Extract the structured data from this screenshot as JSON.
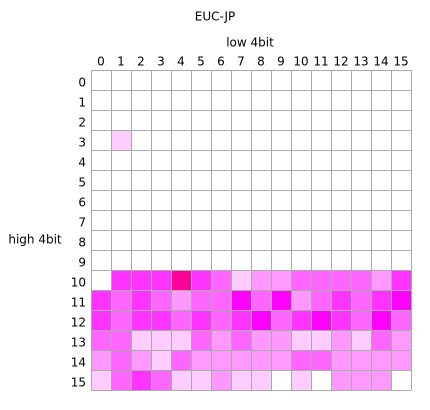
{
  "chart_data": {
    "type": "heatmap",
    "title": "EUC-JP",
    "x_label": "low 4bit",
    "y_label": "high 4bit",
    "xticks": [
      0,
      1,
      2,
      3,
      4,
      5,
      6,
      7,
      8,
      9,
      10,
      11,
      12,
      13,
      14,
      15
    ],
    "yticks": [
      0,
      1,
      2,
      3,
      4,
      5,
      6,
      7,
      8,
      9,
      10,
      11,
      12,
      13,
      14,
      15
    ],
    "colors": [
      "#ffffff",
      "#ffccff",
      "#ff99ff",
      "#ff66ff",
      "#ff33ff",
      "#ff00ff",
      "#ff0099"
    ],
    "grid": true,
    "values": [
      [
        0,
        0,
        0,
        0,
        0,
        0,
        0,
        0,
        0,
        0,
        0,
        0,
        0,
        0,
        0,
        0
      ],
      [
        0,
        0,
        0,
        0,
        0,
        0,
        0,
        0,
        0,
        0,
        0,
        0,
        0,
        0,
        0,
        0
      ],
      [
        0,
        0,
        0,
        0,
        0,
        0,
        0,
        0,
        0,
        0,
        0,
        0,
        0,
        0,
        0,
        0
      ],
      [
        0,
        1,
        0,
        0,
        0,
        0,
        0,
        0,
        0,
        0,
        0,
        0,
        0,
        0,
        0,
        0
      ],
      [
        0,
        0,
        0,
        0,
        0,
        0,
        0,
        0,
        0,
        0,
        0,
        0,
        0,
        0,
        0,
        0
      ],
      [
        0,
        0,
        0,
        0,
        0,
        0,
        0,
        0,
        0,
        0,
        0,
        0,
        0,
        0,
        0,
        0
      ],
      [
        0,
        0,
        0,
        0,
        0,
        0,
        0,
        0,
        0,
        0,
        0,
        0,
        0,
        0,
        0,
        0
      ],
      [
        0,
        0,
        0,
        0,
        0,
        0,
        0,
        0,
        0,
        0,
        0,
        0,
        0,
        0,
        0,
        0
      ],
      [
        0,
        0,
        0,
        0,
        0,
        0,
        0,
        0,
        0,
        0,
        0,
        0,
        0,
        0,
        0,
        0
      ],
      [
        0,
        0,
        0,
        0,
        0,
        0,
        0,
        0,
        0,
        0,
        0,
        0,
        0,
        0,
        0,
        0
      ],
      [
        0,
        4,
        4,
        4,
        6,
        4,
        3,
        1,
        2,
        2,
        3,
        3,
        3,
        3,
        2,
        4
      ],
      [
        4,
        3,
        4,
        3,
        2,
        3,
        3,
        5,
        3,
        5,
        2,
        3,
        4,
        3,
        4,
        5
      ],
      [
        4,
        3,
        4,
        4,
        3,
        4,
        3,
        4,
        5,
        3,
        4,
        5,
        4,
        3,
        5,
        3
      ],
      [
        3,
        3,
        1,
        1,
        1,
        3,
        2,
        3,
        2,
        2,
        1,
        1,
        2,
        1,
        3,
        2
      ],
      [
        2,
        3,
        2,
        1,
        3,
        2,
        2,
        2,
        2,
        2,
        3,
        3,
        2,
        2,
        2,
        2
      ],
      [
        1,
        3,
        4,
        3,
        1,
        1,
        2,
        1,
        1,
        0,
        1,
        0,
        2,
        2,
        2,
        0
      ]
    ]
  }
}
